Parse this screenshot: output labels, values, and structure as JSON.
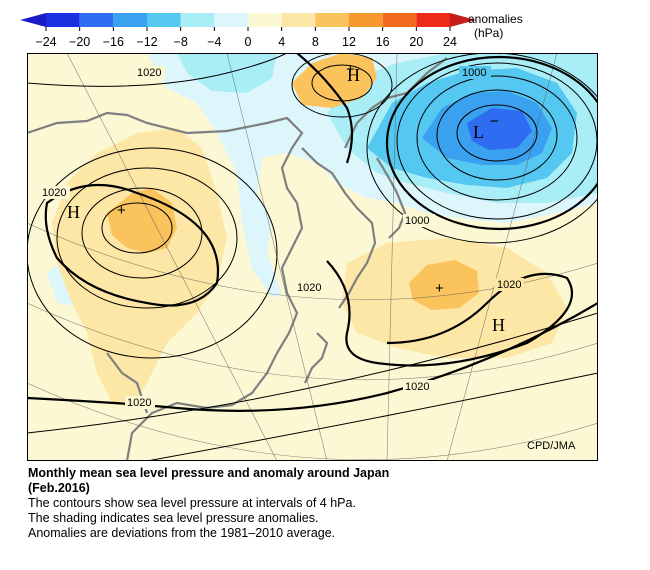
{
  "colorbar": {
    "ticks": [
      "−24",
      "−20",
      "−16",
      "−12",
      "−8",
      "−4",
      "0",
      "4",
      "8",
      "12",
      "16",
      "20",
      "24"
    ],
    "colors": [
      "#1b2fe0",
      "#2e6cf2",
      "#3aa0f0",
      "#55c8f2",
      "#a9eef7",
      "#dcf6fb",
      "#fdf8d4",
      "#fde7a6",
      "#fbc35c",
      "#f79a2e",
      "#f26a1f",
      "#ec2c16"
    ],
    "unit_line1": "anomalies",
    "unit_line2": "(hPa)"
  },
  "map": {
    "contour_labels": [
      "1020",
      "1020",
      "1000",
      "1020",
      "1000",
      "1020",
      "1020",
      "1020"
    ],
    "centers": [
      {
        "symbol": "H",
        "kind": "high"
      },
      {
        "symbol": "H",
        "kind": "high"
      },
      {
        "symbol": "L",
        "kind": "low"
      },
      {
        "symbol": "H",
        "kind": "high"
      }
    ],
    "anomaly_signs": [
      "+",
      "+",
      "+",
      "+",
      "−"
    ],
    "credit": "CPD/JMA"
  },
  "caption": {
    "title_line1": "Monthly mean sea level pressure and anomaly around Japan",
    "title_line2": "(Feb.2016)",
    "line1": "The contours show sea level pressure at intervals of 4 hPa.",
    "line2": "The shading indicates sea level pressure anomalies.",
    "line3": "Anomalies are deviations from the 1981–2010 average."
  }
}
